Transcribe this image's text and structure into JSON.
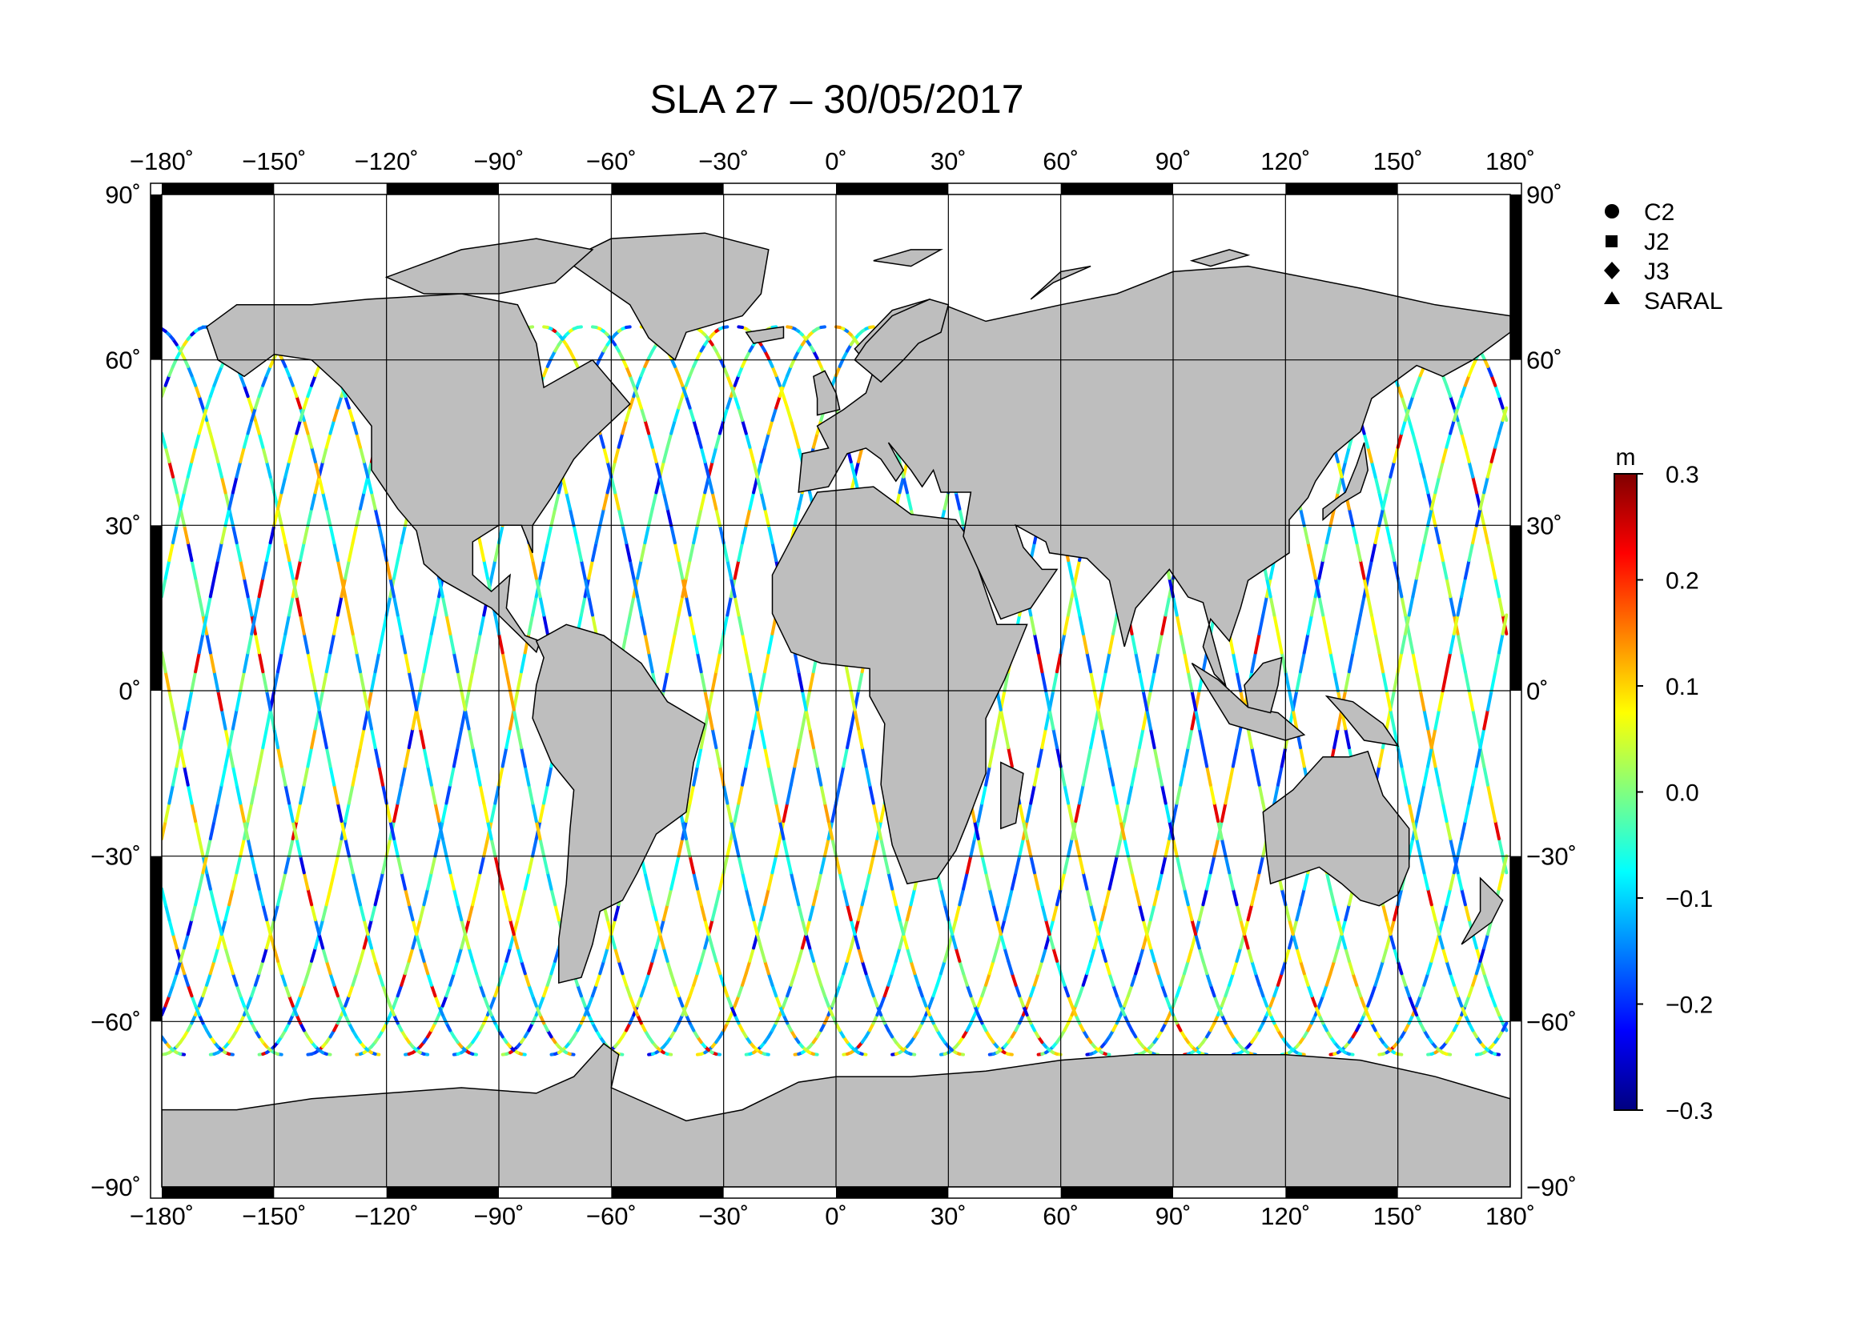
{
  "title": "SLA 27 – 30/05/2017",
  "map": {
    "projection": "equirectangular",
    "lon_range": [
      -180,
      180
    ],
    "lat_range": [
      -90,
      90
    ],
    "grid_interval_lon": 30,
    "grid_interval_lat": 30,
    "grid": true,
    "land_color": "#bebebe",
    "ocean_color": "#ffffff",
    "frame_style": "alternating black/white bars"
  },
  "axes": {
    "lon_ticks": [
      "−180˚",
      "−150˚",
      "−120˚",
      "−90˚",
      "−60˚",
      "−30˚",
      "0˚",
      "30˚",
      "60˚",
      "90˚",
      "120˚",
      "150˚",
      "180˚"
    ],
    "lat_ticks": [
      "90˚",
      "60˚",
      "30˚",
      "0˚",
      "−30˚",
      "−60˚",
      "−90˚"
    ]
  },
  "legend": {
    "placement": "top-right",
    "items": [
      {
        "label": "C2",
        "symbol": "circle"
      },
      {
        "label": "J2",
        "symbol": "square"
      },
      {
        "label": "J3",
        "symbol": "diamond"
      },
      {
        "label": "SARAL",
        "symbol": "triangle"
      }
    ]
  },
  "colorbar": {
    "unit": "m",
    "min": -0.3,
    "max": 0.3,
    "tick_labels": [
      "0.3",
      "0.2",
      "0.1",
      "0.0",
      "−0.1",
      "−0.2",
      "−0.3"
    ],
    "colormap": [
      "#000080",
      "#0000ff",
      "#0080ff",
      "#00ffff",
      "#80ff80",
      "#ffff00",
      "#ff8000",
      "#ff0000",
      "#800000"
    ]
  },
  "tracks": {
    "description_source": "along-track sea level anomaly",
    "coverage_lat": [
      -66,
      66
    ]
  }
}
